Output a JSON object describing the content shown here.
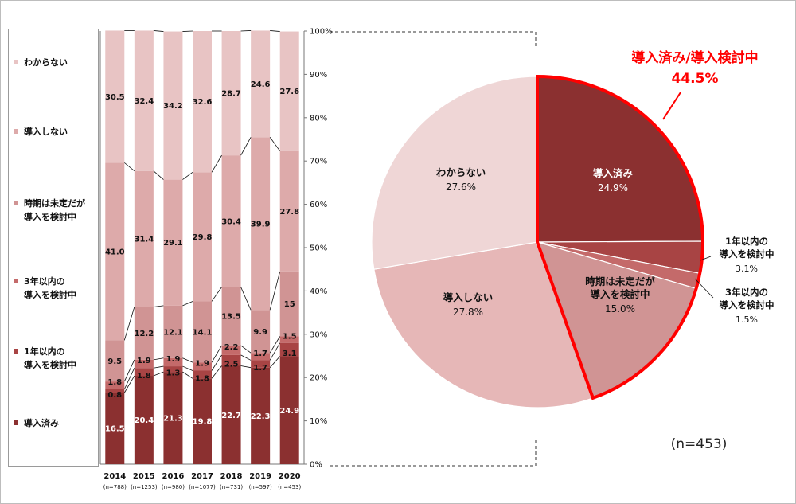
{
  "legend": {
    "items": [
      {
        "label": "わからない",
        "color": "#e8c4c4"
      },
      {
        "label": "導入しない",
        "color": "#ddaaaa"
      },
      {
        "label": "時期は未定だが\n導入を検討中",
        "color": "#d09494"
      },
      {
        "label": "3年以内の\n導入を検討中",
        "color": "#c46a6a"
      },
      {
        "label": "1年以内の\n導入を検討中",
        "color": "#a84444"
      },
      {
        "label": "導入済み",
        "color": "#8b3030"
      }
    ]
  },
  "chart_data": [
    {
      "type": "bar",
      "stacked": true,
      "categories": [
        "2014",
        "2015",
        "2016",
        "2017",
        "2018",
        "2019",
        "2020"
      ],
      "sample_sizes": [
        "(n=788)",
        "(n=1253)",
        "(n=980)",
        "(n=1077)",
        "(n=731)",
        "(n=597)",
        "(n=453)"
      ],
      "y_ticks": [
        "0%",
        "10%",
        "20%",
        "30%",
        "40%",
        "50%",
        "60%",
        "70%",
        "80%",
        "90%",
        "100%"
      ],
      "ylim": [
        0,
        100
      ],
      "series": [
        {
          "name": "導入済み",
          "color": "#8b3030",
          "values": [
            16.5,
            20.4,
            21.3,
            19.8,
            22.7,
            22.3,
            24.9
          ],
          "labels": [
            "16.5",
            "20.4",
            "21.3",
            "19.8",
            "22.7",
            "22.3",
            "24.9"
          ]
        },
        {
          "name": "1年以内の導入を検討中",
          "color": "#a84444",
          "values": [
            0.8,
            1.8,
            1.3,
            1.8,
            2.5,
            1.7,
            3.1
          ],
          "labels": [
            "0.8",
            "1.8",
            "1.3",
            "1.8",
            "2.5",
            "1.7",
            "3.1"
          ]
        },
        {
          "name": "3年以内の導入を検討中",
          "color": "#c46a6a",
          "values": [
            1.8,
            1.9,
            1.9,
            1.9,
            2.2,
            1.7,
            1.5
          ],
          "labels": [
            "1.8",
            "1.9",
            "1.9",
            "1.9",
            "2.2",
            "1.7",
            "1.5"
          ]
        },
        {
          "name": "時期は未定だが導入を検討中",
          "color": "#d09494",
          "values": [
            9.5,
            12.2,
            12.1,
            14.1,
            13.5,
            9.9,
            15.0
          ],
          "labels": [
            "9.5",
            "12.2",
            "12.1",
            "14.1",
            "13.5",
            "9.9",
            "15"
          ]
        },
        {
          "name": "導入しない",
          "color": "#ddaaaa",
          "values": [
            41.0,
            31.4,
            29.1,
            29.8,
            30.4,
            39.9,
            27.8
          ],
          "labels": [
            "41.0",
            "31.4",
            "29.1",
            "29.8",
            "30.4",
            "39.9",
            "27.8"
          ]
        },
        {
          "name": "わからない",
          "color": "#e8c4c4",
          "values": [
            30.5,
            32.4,
            34.2,
            32.6,
            28.7,
            24.6,
            27.6
          ],
          "labels": [
            "30.5",
            "32.4",
            "34.2",
            "32.6",
            "28.7",
            "24.6",
            "27.6"
          ]
        }
      ]
    },
    {
      "type": "pie",
      "sample_size": "(n=453)",
      "highlight": {
        "label": "導入済み/導入検討中",
        "value": "44.5%",
        "color": "#ff0000"
      },
      "slices": [
        {
          "label": "導入済み",
          "value": 24.9,
          "value_label": "24.9%",
          "color": "#8b3030"
        },
        {
          "label": "1年以内の\n導入を検討中",
          "value": 3.1,
          "value_label": "3.1%",
          "color": "#a84444"
        },
        {
          "label": "3年以内の\n導入を検討中",
          "value": 1.5,
          "value_label": "1.5%",
          "color": "#c46a6a"
        },
        {
          "label": "時期は未定だが\n導入を検討中",
          "value": 15.0,
          "value_label": "15.0%",
          "color": "#d09494"
        },
        {
          "label": "導入しない",
          "value": 27.8,
          "value_label": "27.8%",
          "color": "#e6b7b7"
        },
        {
          "label": "わからない",
          "value": 27.6,
          "value_label": "27.6%",
          "color": "#efd6d6"
        }
      ]
    }
  ]
}
